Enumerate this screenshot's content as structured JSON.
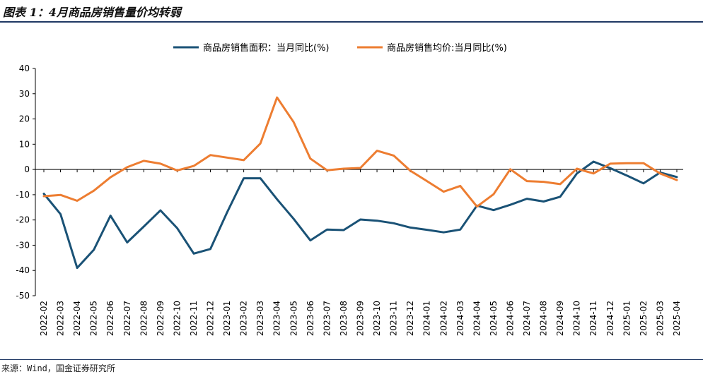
{
  "header": {
    "title": "图表 1：4月商品房销售量价均转弱"
  },
  "footer": {
    "source": "来源：Wind，国金证券研究所"
  },
  "colors": {
    "area_series": "#1a5276",
    "price_series": "#ed7d31",
    "rule": "#1f3864"
  },
  "chart_data": {
    "type": "line",
    "title": "",
    "xlabel": "",
    "ylabel": "",
    "ylim": [
      -50,
      40
    ],
    "yticks": [
      40,
      30,
      20,
      10,
      0,
      -10,
      -20,
      -30,
      -40,
      -50
    ],
    "grid": false,
    "legend_position": "top-center",
    "categories": [
      "2022-02",
      "2022-03",
      "2022-04",
      "2022-05",
      "2022-06",
      "2022-07",
      "2022-08",
      "2022-09",
      "2022-10",
      "2022-11",
      "2022-12",
      "2023-01",
      "2023-02",
      "2023-03",
      "2023-04",
      "2023-05",
      "2023-06",
      "2023-07",
      "2023-08",
      "2023-09",
      "2023-10",
      "2023-11",
      "2023-12",
      "2024-01",
      "2024-02",
      "2024-03",
      "2024-04",
      "2024-05",
      "2024-06",
      "2024-07",
      "2024-08",
      "2024-09",
      "2024-10",
      "2024-11",
      "2024-12",
      "2025-01",
      "2025-02",
      "2025-03",
      "2025-04"
    ],
    "series": [
      {
        "name": "商品房销售面积：当月同比(%)",
        "color": "#1a5276",
        "values": [
          -9.6,
          -17.7,
          -39.0,
          -31.8,
          -18.3,
          -28.9,
          -22.6,
          -16.2,
          -23.2,
          -33.3,
          -31.5,
          -17.0,
          -3.5,
          -3.5,
          -11.8,
          -19.6,
          -28.1,
          -23.8,
          -24.0,
          -19.8,
          -20.3,
          -21.3,
          -23.0,
          -23.9,
          -24.9,
          -23.8,
          -14.3,
          -16.1,
          -14.0,
          -11.6,
          -12.7,
          -10.8,
          -1.6,
          3.1,
          0.5,
          -2.4,
          -5.5,
          -1.2,
          -3.0
        ]
      },
      {
        "name": "商品房销售均价:当月同比(%)",
        "color": "#ed7d31",
        "values": [
          -10.6,
          -10.1,
          -12.4,
          -8.4,
          -3.1,
          0.9,
          3.4,
          2.3,
          -0.4,
          1.4,
          5.7,
          4.7,
          3.7,
          10.3,
          28.5,
          18.7,
          4.3,
          -0.3,
          0.3,
          0.6,
          7.4,
          5.5,
          -0.5,
          -4.6,
          -8.8,
          -6.5,
          -14.7,
          -9.8,
          0.1,
          -4.6,
          -4.9,
          -5.8,
          0.3,
          -1.6,
          2.3,
          2.5,
          2.5,
          -1.6,
          -4.2
        ]
      }
    ]
  }
}
